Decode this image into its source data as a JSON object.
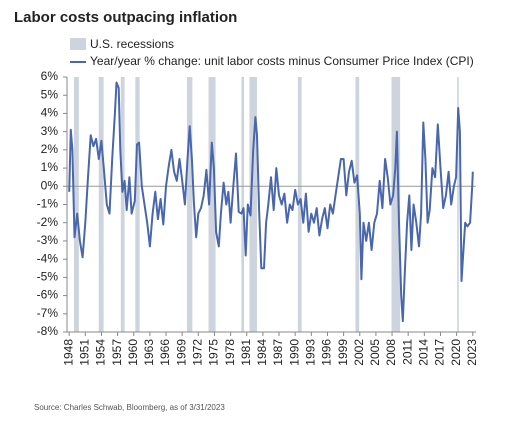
{
  "chart_data": {
    "type": "line",
    "title": "Labor costs outpacing inflation",
    "recessions_label": "U.S. recessions",
    "recession_color": "#cdd4de",
    "recessions": [
      [
        1948.9,
        1949.8
      ],
      [
        1953.5,
        1954.4
      ],
      [
        1957.6,
        1958.3
      ],
      [
        1960.3,
        1961.1
      ],
      [
        1969.9,
        1970.9
      ],
      [
        1973.9,
        1975.2
      ],
      [
        1980.0,
        1980.5
      ],
      [
        1981.5,
        1982.9
      ],
      [
        1990.5,
        1991.2
      ],
      [
        2001.2,
        2001.9
      ],
      [
        2007.9,
        2009.5
      ],
      [
        2020.1,
        2020.4
      ]
    ],
    "x": [
      1948.0,
      1948.3,
      1948.6,
      1949.0,
      1949.5,
      1950.0,
      1950.5,
      1951.0,
      1951.5,
      1952.0,
      1952.5,
      1953.0,
      1953.5,
      1954.0,
      1954.5,
      1955.0,
      1955.5,
      1956.0,
      1956.5,
      1956.8,
      1957.2,
      1957.5,
      1957.9,
      1958.3,
      1958.7,
      1959.2,
      1959.6,
      1960.2,
      1960.6,
      1961.0,
      1961.5,
      1962.0,
      1962.5,
      1963.0,
      1963.5,
      1964.0,
      1964.5,
      1965.0,
      1965.5,
      1966.0,
      1966.5,
      1967.0,
      1967.5,
      1968.0,
      1968.5,
      1969.0,
      1969.5,
      1970.0,
      1970.4,
      1970.8,
      1971.2,
      1971.6,
      1972.0,
      1972.5,
      1973.0,
      1973.5,
      1974.0,
      1974.5,
      1974.9,
      1975.3,
      1975.8,
      1976.2,
      1976.7,
      1977.2,
      1977.6,
      1978.0,
      1978.5,
      1979.0,
      1979.5,
      1980.0,
      1980.4,
      1980.8,
      1981.2,
      1981.7,
      1982.2,
      1982.6,
      1982.9,
      1983.3,
      1983.7,
      1984.2,
      1984.6,
      1985.0,
      1985.5,
      1986.0,
      1986.5,
      1987.0,
      1987.5,
      1988.0,
      1988.5,
      1989.0,
      1989.5,
      1990.0,
      1990.5,
      1991.0,
      1991.5,
      1992.0,
      1992.5,
      1993.0,
      1993.5,
      1994.0,
      1994.5,
      1995.0,
      1995.5,
      1996.0,
      1996.5,
      1997.0,
      1997.5,
      1998.0,
      1998.5,
      1999.0,
      1999.5,
      2000.0,
      2000.5,
      2001.0,
      2001.5,
      2002.0,
      2002.3,
      2002.7,
      2003.2,
      2003.7,
      2004.2,
      2004.7,
      2005.2,
      2005.7,
      2006.2,
      2006.7,
      2007.2,
      2007.7,
      2008.2,
      2008.6,
      2008.9,
      2009.3,
      2009.7,
      2010.0,
      2010.4,
      2010.8,
      2011.2,
      2011.6,
      2012.0,
      2012.5,
      2013.0,
      2013.4,
      2013.8,
      2014.2,
      2014.6,
      2015.0,
      2015.5,
      2016.0,
      2016.5,
      2017.0,
      2017.5,
      2018.0,
      2018.5,
      2019.0,
      2019.5,
      2019.9,
      2020.3,
      2020.6,
      2020.9,
      2021.2,
      2021.6,
      2022.0,
      2022.5,
      2022.9,
      2023.0
    ],
    "series": [
      {
        "name": "Year/year % change: unit labor costs minus Consumer Price Index (CPI)",
        "color": "#4a67ad",
        "values": [
          -0.3,
          3.1,
          2.0,
          -2.8,
          -1.5,
          -3.0,
          -3.9,
          -2.0,
          0.5,
          2.8,
          2.2,
          2.6,
          1.5,
          2.5,
          0.8,
          -1.0,
          -1.5,
          1.5,
          4.0,
          5.7,
          5.4,
          2.0,
          -0.3,
          0.3,
          -1.3,
          0.5,
          -1.5,
          -0.8,
          2.3,
          2.4,
          0.0,
          -1.0,
          -2.0,
          -3.3,
          -1.5,
          -0.3,
          -1.8,
          -0.7,
          -2.1,
          0.0,
          1.1,
          2.0,
          0.8,
          0.3,
          1.5,
          0.3,
          -1.0,
          1.5,
          3.3,
          1.5,
          -1.0,
          -2.8,
          -1.5,
          -1.2,
          -0.5,
          0.9,
          -1.0,
          2.4,
          1.0,
          -2.5,
          -3.3,
          -1.5,
          0.2,
          -1.0,
          -0.3,
          -2.0,
          0.0,
          1.8,
          -1.4,
          -1.5,
          -1.2,
          -3.8,
          -1.0,
          -1.6,
          2.0,
          3.8,
          2.8,
          -1.3,
          -4.5,
          -4.5,
          -2.0,
          -1.0,
          0.5,
          -1.3,
          1.0,
          -0.5,
          -1.0,
          -0.4,
          -2.0,
          -1.0,
          -1.3,
          -0.2,
          -1.0,
          -0.7,
          -2.0,
          -0.4,
          -2.5,
          -1.5,
          -2.0,
          -1.2,
          -2.7,
          -1.8,
          -1.2,
          -2.3,
          -1.0,
          -1.5,
          -0.5,
          0.5,
          1.5,
          1.5,
          -0.5,
          0.8,
          1.4,
          0.2,
          0.6,
          -1.5,
          -5.1,
          -2.0,
          -3.0,
          -2.0,
          -3.5,
          -2.0,
          -1.5,
          0.3,
          -1.2,
          1.5,
          0.5,
          -1.0,
          -0.5,
          1.0,
          3.0,
          -2.0,
          -6.0,
          -7.4,
          -4.5,
          -2.0,
          -0.5,
          -3.5,
          -1.0,
          -2.0,
          -3.3,
          -1.5,
          3.5,
          1.5,
          -2.0,
          -1.3,
          1.0,
          0.5,
          3.4,
          1.0,
          -1.2,
          -0.5,
          0.8,
          -1.0,
          0.0,
          0.5,
          4.3,
          3.0,
          -5.2,
          -3.8,
          -2.0,
          -2.2,
          -2.0,
          0.0,
          0.8
        ]
      }
    ],
    "xlim": [
      1947.6,
      2023.6
    ],
    "xticks": [
      1948,
      1951,
      1954,
      1957,
      1960,
      1963,
      1966,
      1969,
      1972,
      1975,
      1978,
      1981,
      1984,
      1987,
      1990,
      1993,
      1996,
      1999,
      2002,
      2005,
      2008,
      2011,
      2014,
      2017,
      2020,
      2023
    ],
    "ylim": [
      -8,
      6
    ],
    "yticks": [
      {
        "value": 6,
        "label": "6%"
      },
      {
        "value": 5,
        "label": "5%"
      },
      {
        "value": 4,
        "label": "4%"
      },
      {
        "value": 3,
        "label": "3%"
      },
      {
        "value": 2,
        "label": "2%"
      },
      {
        "value": 1,
        "label": "1%"
      },
      {
        "value": 0,
        "label": "0%"
      },
      {
        "value": -1,
        "label": "-1%"
      },
      {
        "value": -2,
        "label": "-2%"
      },
      {
        "value": -3,
        "label": "-3%"
      },
      {
        "value": -4,
        "label": "-4%"
      },
      {
        "value": -5,
        "label": "-5%"
      },
      {
        "value": -6,
        "label": "-6%"
      },
      {
        "value": -7,
        "label": "-7%"
      },
      {
        "value": -8,
        "label": "-8%"
      }
    ],
    "source": "Source: Charles Schwab, Bloomberg, as of 3/31/2023"
  }
}
